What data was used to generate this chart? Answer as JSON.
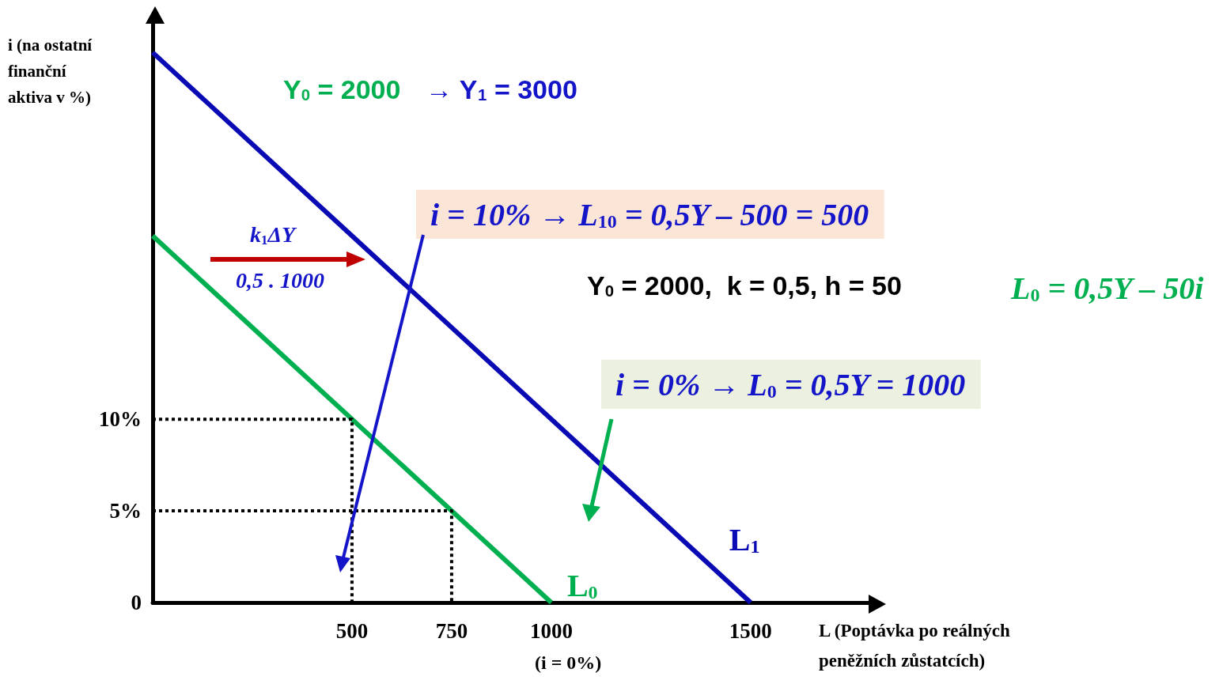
{
  "chart_data": {
    "type": "line",
    "xlabel": "L (Poptávka po reálných peněžních zůstatcích)",
    "ylabel": "i (na ostatní finanční aktiva v %)",
    "series": [
      {
        "name": "L$_{1}$",
        "color": "#0a0ab4",
        "x": [
          0,
          1500
        ],
        "values": [
          30,
          0
        ]
      },
      {
        "name": "L$_{0}$",
        "color": "#00b050",
        "x": [
          0,
          1000
        ],
        "values": [
          20,
          0
        ]
      },
      {
        "color": "#000000",
        "x": [
          0,
          500,
          500
        ],
        "values": [
          10,
          10,
          0
        ],
        "line_style": "dotted"
      },
      {
        "color": "#000000",
        "x": [
          0,
          750,
          750
        ],
        "values": [
          5,
          5,
          0
        ],
        "line_style": "dotted"
      }
    ],
    "xlim": [
      0,
      1800
    ],
    "ylim": [
      0,
      32
    ],
    "xticks": [
      500,
      750,
      1000,
      1500
    ],
    "yticks": [
      0,
      {
        "value": 5,
        "label": "5%"
      },
      {
        "value": 10,
        "label": "10%"
      }
    ],
    "grid": false,
    "legend": false,
    "marker": "none",
    "line_style": "solid",
    "annotations": [
      "Y$_{0}$ = 2000",
      "→ Y$_{1}$ = 3000",
      "i = 10% → L$_{10}$ = 0,5Y – 500 = 500",
      "k$_{1}$ΔY",
      "0,5 . 1000",
      "Y$_{0}$ = 2000,  k = 0,5, h = 50",
      "L$_{0}$ = 0,5Y – 50i",
      "i = 0% → L$_{0}$ = 0,5Y = 1000",
      "(i = 0%)"
    ]
  }
}
